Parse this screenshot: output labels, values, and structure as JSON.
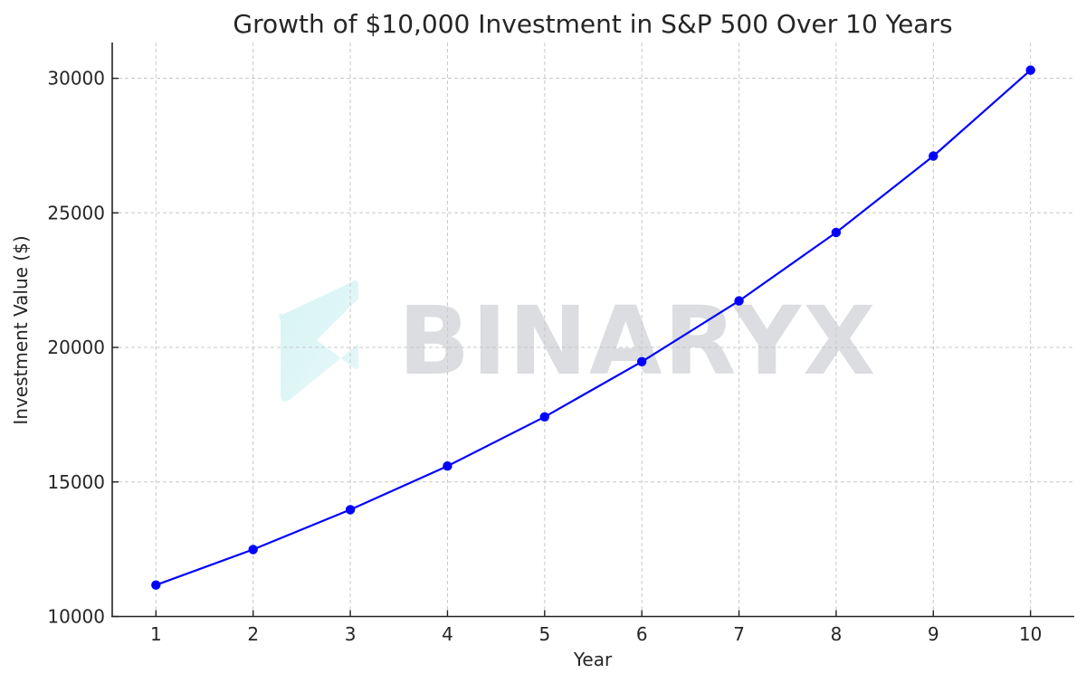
{
  "chart_data": {
    "type": "line",
    "title": "Growth of $10,000 Investment in S&P 500 Over 10 Years",
    "xlabel": "Year",
    "ylabel": "Investment Value ($)",
    "x": [
      1,
      2,
      3,
      4,
      5,
      6,
      7,
      8,
      9,
      10
    ],
    "categories": [
      "1",
      "2",
      "3",
      "4",
      "5",
      "6",
      "7",
      "8",
      "9",
      "10"
    ],
    "series": [
      {
        "name": "Investment Value",
        "values": [
          11170,
          12490,
          13970,
          15590,
          17420,
          19470,
          21730,
          24270,
          27110,
          30300
        ],
        "color": "#0000ff",
        "marker": "circle"
      }
    ],
    "xticks": [
      "1",
      "2",
      "3",
      "4",
      "5",
      "6",
      "7",
      "8",
      "9",
      "10"
    ],
    "yticks": [
      "10000",
      "15000",
      "20000",
      "25000",
      "30000"
    ],
    "xlim": [
      0.55,
      10.45
    ],
    "ylim": [
      10000,
      31330
    ],
    "grid": true,
    "legend": null
  },
  "watermark": {
    "text": "BINARYX",
    "logo": "binaryx-logo-icon"
  }
}
